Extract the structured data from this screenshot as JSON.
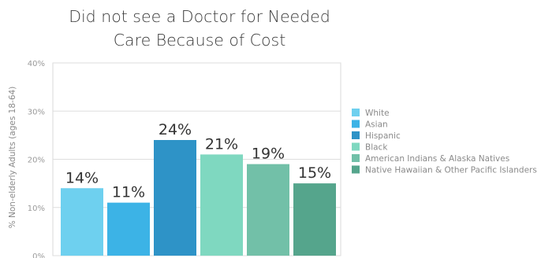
{
  "chart_data": {
    "type": "bar",
    "title": "Did not see a Doctor for Needed Care Because of Cost",
    "title_lines": [
      "Did not see a Doctor for Needed",
      "Care Because of Cost"
    ],
    "ylabel": "% Non-elderly Adults (ages 18-64)",
    "xlabel": "",
    "ylim": [
      0,
      40
    ],
    "yticks": [
      "0%",
      "10%",
      "20%",
      "30%",
      "40%"
    ],
    "grid": true,
    "legend_position": "right",
    "categories": [
      "White",
      "Asian",
      "Hispanic",
      "Black",
      "American Indians & Alaska Natives",
      "Native Hawaiian & Other Pacific Islanders"
    ],
    "values": [
      14,
      11,
      24,
      21,
      19,
      15
    ],
    "data_labels": [
      "14%",
      "11%",
      "24%",
      "21%",
      "19%",
      "15%"
    ],
    "colors": [
      "#6ed0ef",
      "#3cb3e6",
      "#2e93c7",
      "#7fd8c0",
      "#72c0a8",
      "#55a58c"
    ]
  }
}
